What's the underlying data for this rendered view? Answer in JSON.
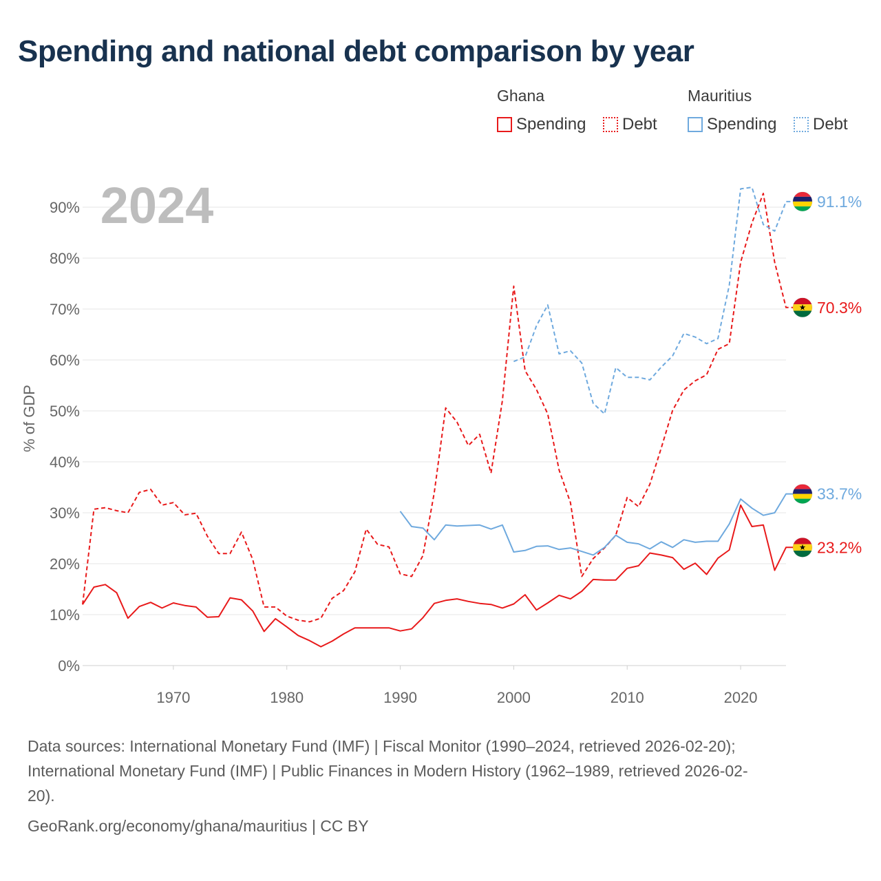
{
  "title": "Spending and national debt comparison by year",
  "legend": {
    "ghana_label": "Ghana",
    "mauritius_label": "Mauritius",
    "spending_label": "Spending",
    "debt_label": "Debt"
  },
  "colors": {
    "ghana": "#e8191a",
    "mauritius": "#6ea9de"
  },
  "footer": {
    "sources_line1": "Data sources: International Monetary Fund (IMF) | Fiscal Monitor (1990–2024, retrieved 2026-02-20);",
    "sources_line2": "International Monetary Fund (IMF) | Public Finances in Modern History (1962–1989, retrieved 2026-02-",
    "sources_line3": "20).",
    "credit": "GeoRank.org/economy/ghana/mauritius | CC BY"
  },
  "chart_data": {
    "type": "line",
    "year_label": "2024",
    "ylabel": "% of GDP",
    "xlim": [
      1962,
      2024
    ],
    "ylim": [
      0,
      95
    ],
    "x_ticks": [
      1970,
      1980,
      1990,
      2000,
      2010,
      2020
    ],
    "y_ticks": [
      0,
      10,
      20,
      30,
      40,
      50,
      60,
      70,
      80,
      90
    ],
    "y_tick_labels": [
      "0%",
      "10%",
      "20%",
      "30%",
      "40%",
      "50%",
      "60%",
      "70%",
      "80%",
      "90%"
    ],
    "series": [
      {
        "name": "Ghana Spending",
        "country": "ghana",
        "style": "solid",
        "end_label": "23.2%",
        "x": [
          1962,
          1963,
          1964,
          1965,
          1966,
          1967,
          1968,
          1969,
          1970,
          1971,
          1972,
          1973,
          1974,
          1975,
          1976,
          1977,
          1978,
          1979,
          1980,
          1981,
          1982,
          1983,
          1984,
          1985,
          1986,
          1987,
          1988,
          1989,
          1990,
          1991,
          1992,
          1993,
          1994,
          1995,
          1996,
          1997,
          1998,
          1999,
          2000,
          2001,
          2002,
          2003,
          2004,
          2005,
          2006,
          2007,
          2008,
          2009,
          2010,
          2011,
          2012,
          2013,
          2014,
          2015,
          2016,
          2017,
          2018,
          2019,
          2020,
          2021,
          2022,
          2023,
          2024
        ],
        "values": [
          12.0,
          15.4,
          15.9,
          14.3,
          9.3,
          11.6,
          12.4,
          11.3,
          12.3,
          11.8,
          11.5,
          9.5,
          9.6,
          13.3,
          12.9,
          10.7,
          6.7,
          9.2,
          7.6,
          5.9,
          4.9,
          3.7,
          4.8,
          6.2,
          7.4,
          7.4,
          7.4,
          7.4,
          6.8,
          7.2,
          9.4,
          12.2,
          12.8,
          13.1,
          12.6,
          12.2,
          12.0,
          11.3,
          12.1,
          13.9,
          10.9,
          12.3,
          13.8,
          13.1,
          14.6,
          16.9,
          16.8,
          16.8,
          19.1,
          19.6,
          22.1,
          21.7,
          21.2,
          18.9,
          20.1,
          17.9,
          21.1,
          22.7,
          31.5,
          27.3,
          27.6,
          18.7,
          23.2
        ]
      },
      {
        "name": "Ghana Debt",
        "country": "ghana",
        "style": "dashed",
        "end_label": "70.3%",
        "x": [
          1962,
          1963,
          1964,
          1965,
          1966,
          1967,
          1968,
          1969,
          1970,
          1971,
          1972,
          1973,
          1974,
          1975,
          1976,
          1977,
          1978,
          1979,
          1980,
          1981,
          1982,
          1983,
          1984,
          1985,
          1986,
          1987,
          1988,
          1989,
          1990,
          1991,
          1992,
          1993,
          1994,
          1995,
          1996,
          1997,
          1998,
          1999,
          2000,
          2001,
          2002,
          2003,
          2004,
          2005,
          2006,
          2007,
          2008,
          2009,
          2010,
          2011,
          2012,
          2013,
          2014,
          2015,
          2016,
          2017,
          2018,
          2019,
          2020,
          2021,
          2022,
          2023,
          2024
        ],
        "values": [
          12.0,
          30.7,
          31.0,
          30.4,
          30.0,
          34.0,
          34.6,
          31.5,
          32.0,
          29.6,
          29.9,
          25.4,
          22.0,
          22.0,
          26.2,
          20.8,
          11.5,
          11.5,
          9.7,
          8.9,
          8.6,
          9.3,
          13.2,
          14.7,
          18.4,
          26.8,
          23.8,
          23.3,
          18.0,
          17.5,
          21.6,
          34.0,
          50.6,
          47.8,
          43.2,
          45.4,
          37.8,
          52.0,
          74.5,
          57.9,
          54.2,
          49.4,
          38.4,
          32.0,
          17.5,
          21.0,
          23.1,
          25.6,
          33.0,
          31.2,
          35.6,
          42.7,
          50.1,
          54.1,
          55.9,
          57.1,
          62.1,
          63.2,
          79.2,
          86.9,
          92.7,
          79.2,
          70.3
        ]
      },
      {
        "name": "Mauritius Spending",
        "country": "mauritius",
        "style": "solid",
        "end_label": "33.7%",
        "x": [
          1990,
          1991,
          1992,
          1993,
          1994,
          1995,
          1996,
          1997,
          1998,
          1999,
          2000,
          2001,
          2002,
          2003,
          2004,
          2005,
          2006,
          2007,
          2008,
          2009,
          2010,
          2011,
          2012,
          2013,
          2014,
          2015,
          2016,
          2017,
          2018,
          2019,
          2020,
          2021,
          2022,
          2023,
          2024
        ],
        "values": [
          30.3,
          27.3,
          27.0,
          24.7,
          27.6,
          27.4,
          27.5,
          27.6,
          26.8,
          27.6,
          22.3,
          22.6,
          23.4,
          23.5,
          22.8,
          23.1,
          22.4,
          21.7,
          23.2,
          25.6,
          24.2,
          23.9,
          22.9,
          24.3,
          23.2,
          24.7,
          24.2,
          24.4,
          24.4,
          27.8,
          32.7,
          30.9,
          29.5,
          30.0,
          33.7
        ]
      },
      {
        "name": "Mauritius Debt",
        "country": "mauritius",
        "style": "dashed",
        "end_label": "91.1%",
        "x": [
          2000,
          2001,
          2002,
          2003,
          2004,
          2005,
          2006,
          2007,
          2008,
          2009,
          2010,
          2011,
          2012,
          2013,
          2014,
          2015,
          2016,
          2017,
          2018,
          2019,
          2020,
          2021,
          2022,
          2023,
          2024
        ],
        "values": [
          59.7,
          60.6,
          66.7,
          70.8,
          61.2,
          61.8,
          59.4,
          51.5,
          49.4,
          58.5,
          56.6,
          56.6,
          56.1,
          58.6,
          60.8,
          65.2,
          64.5,
          63.2,
          64.2,
          74.7,
          93.6,
          93.9,
          86.6,
          85.3,
          91.1
        ]
      }
    ]
  }
}
